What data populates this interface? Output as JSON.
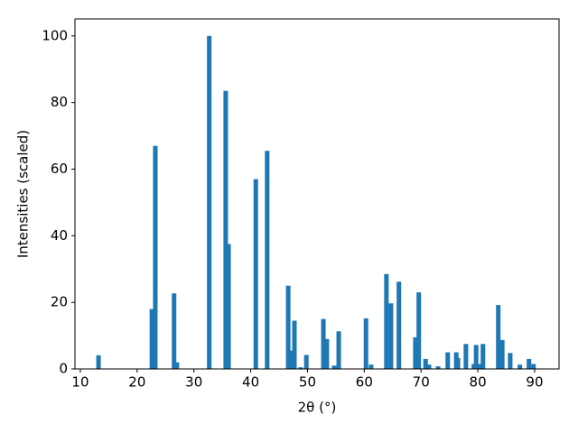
{
  "chart_data": {
    "type": "bar",
    "xlabel": "2θ (°)",
    "ylabel": "Intensities (scaled)",
    "x": [
      13.2,
      22.6,
      23.2,
      26.5,
      27.0,
      32.7,
      35.6,
      36.1,
      40.9,
      42.9,
      46.6,
      47.2,
      47.7,
      48.8,
      49.8,
      52.8,
      53.4,
      54.7,
      55.5,
      60.3,
      61.2,
      63.9,
      64.7,
      66.1,
      69.0,
      69.6,
      70.8,
      71.4,
      73.0,
      74.7,
      76.2,
      76.5,
      77.9,
      79.3,
      79.7,
      80.3,
      80.9,
      83.6,
      84.3,
      85.7,
      87.4,
      89.0,
      89.8
    ],
    "values": [
      4.1,
      18,
      67,
      22.7,
      2,
      100,
      83.5,
      37.5,
      57,
      65.5,
      25,
      5.5,
      14.5,
      0.5,
      4.2,
      15,
      9,
      1,
      11.3,
      15.2,
      1.3,
      28.5,
      19.7,
      26.2,
      9.5,
      23,
      3,
      1.3,
      0.8,
      5,
      5,
      3.3,
      7.5,
      1.5,
      7.2,
      1.5,
      7.5,
      19.2,
      8.7,
      4.8,
      1.3,
      3,
      1.5
    ],
    "color": "#1f77b4",
    "xlim": [
      9.05,
      94.3
    ],
    "xticks": [
      10,
      20,
      30,
      40,
      50,
      60,
      70,
      80,
      90
    ],
    "ylim": [
      0,
      105.1
    ],
    "yticks": [
      0,
      20,
      40,
      60,
      80,
      100
    ]
  }
}
